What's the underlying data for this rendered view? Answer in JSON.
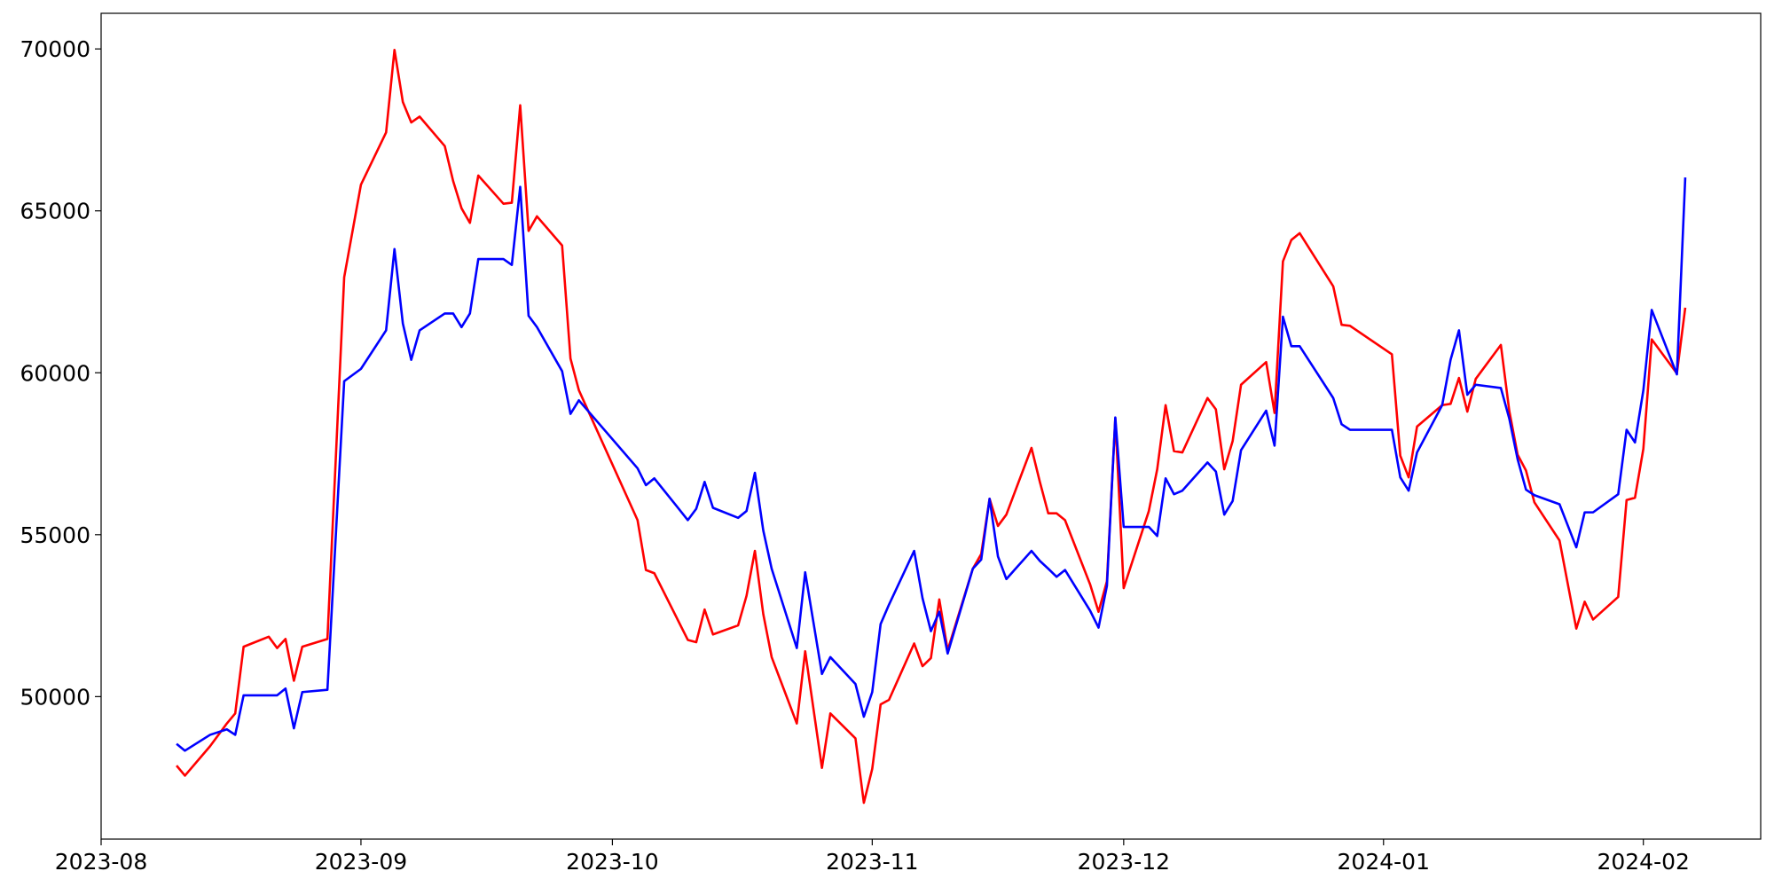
{
  "chart_data": {
    "type": "line",
    "x": [
      "2023-08-10",
      "2023-08-11",
      "2023-08-14",
      "2023-08-16",
      "2023-08-17",
      "2023-08-18",
      "2023-08-21",
      "2023-08-22",
      "2023-08-23",
      "2023-08-24",
      "2023-08-25",
      "2023-08-28",
      "2023-08-30",
      "2023-09-01",
      "2023-09-04",
      "2023-09-05",
      "2023-09-06",
      "2023-09-07",
      "2023-09-08",
      "2023-09-11",
      "2023-09-12",
      "2023-09-13",
      "2023-09-14",
      "2023-09-15",
      "2023-09-18",
      "2023-09-19",
      "2023-09-20",
      "2023-09-21",
      "2023-09-22",
      "2023-09-25",
      "2023-09-26",
      "2023-09-27",
      "2023-10-04",
      "2023-10-05",
      "2023-10-06",
      "2023-10-10",
      "2023-10-11",
      "2023-10-12",
      "2023-10-13",
      "2023-10-16",
      "2023-10-17",
      "2023-10-18",
      "2023-10-19",
      "2023-10-20",
      "2023-10-23",
      "2023-10-24",
      "2023-10-26",
      "2023-10-27",
      "2023-10-30",
      "2023-10-31",
      "2023-11-01",
      "2023-11-02",
      "2023-11-03",
      "2023-11-06",
      "2023-11-07",
      "2023-11-08",
      "2023-11-09",
      "2023-11-10",
      "2023-11-13",
      "2023-11-14",
      "2023-11-15",
      "2023-11-16",
      "2023-11-17",
      "2023-11-20",
      "2023-11-21",
      "2023-11-22",
      "2023-11-23",
      "2023-11-24",
      "2023-11-27",
      "2023-11-28",
      "2023-11-29",
      "2023-11-30",
      "2023-12-01",
      "2023-12-04",
      "2023-12-05",
      "2023-12-06",
      "2023-12-07",
      "2023-12-08",
      "2023-12-11",
      "2023-12-12",
      "2023-12-13",
      "2023-12-14",
      "2023-12-15",
      "2023-12-18",
      "2023-12-19",
      "2023-12-20",
      "2023-12-21",
      "2023-12-22",
      "2023-12-26",
      "2023-12-27",
      "2023-12-28",
      "2024-01-02",
      "2024-01-03",
      "2024-01-04",
      "2024-01-05",
      "2024-01-08",
      "2024-01-09",
      "2024-01-10",
      "2024-01-11",
      "2024-01-12",
      "2024-01-15",
      "2024-01-16",
      "2024-01-17",
      "2024-01-18",
      "2024-01-19",
      "2024-01-22",
      "2024-01-24",
      "2024-01-25",
      "2024-01-26",
      "2024-01-29",
      "2024-01-30",
      "2024-01-31",
      "2024-02-01",
      "2024-02-02",
      "2024-02-05",
      "2024-02-06"
    ],
    "series": [
      {
        "color": "#ff0000",
        "values": [
          47870,
          47560,
          48470,
          49170,
          49480,
          51540,
          51850,
          51500,
          51780,
          50490,
          51540,
          51780,
          62950,
          65810,
          67420,
          69970,
          68360,
          67730,
          67910,
          67000,
          65920,
          65080,
          64630,
          66090,
          65220,
          65250,
          68260,
          64380,
          64830,
          63930,
          60440,
          59460,
          55450,
          53910,
          53810,
          51750,
          51680,
          52690,
          51920,
          52200,
          53110,
          54500,
          52550,
          51220,
          49170,
          51400,
          47800,
          49480,
          48710,
          46720,
          47770,
          49760,
          49900,
          51640,
          50940,
          51190,
          53000,
          51430,
          53950,
          54400,
          56110,
          55270,
          55620,
          57680,
          56630,
          55660,
          55660,
          55450,
          53460,
          52620,
          53560,
          58590,
          53350,
          55730,
          57020,
          59000,
          57580,
          57540,
          59220,
          58870,
          57020,
          57890,
          59630,
          60330,
          58760,
          63440,
          64100,
          64310,
          62670,
          61480,
          61450,
          60570,
          57440,
          56770,
          58340,
          59000,
          59040,
          59840,
          58800,
          59810,
          60860,
          58830,
          57470,
          56980,
          56000,
          54820,
          52100,
          52930,
          52380,
          53080,
          56070,
          56140,
          57650,
          61030,
          59980,
          62010
        ]
      },
      {
        "color": "#0000ff",
        "values": [
          48540,
          48330,
          48820,
          48990,
          48820,
          50040,
          50040,
          50040,
          50250,
          49020,
          50140,
          50210,
          59740,
          60120,
          61310,
          63820,
          61520,
          60400,
          61310,
          61830,
          61830,
          61410,
          61830,
          63510,
          63510,
          63330,
          65740,
          61760,
          61410,
          60050,
          58730,
          59150,
          57050,
          56530,
          56740,
          55450,
          55800,
          56630,
          55830,
          55520,
          55730,
          56910,
          55130,
          53950,
          51500,
          53840,
          50700,
          51220,
          50390,
          49380,
          50140,
          52240,
          52840,
          54500,
          53040,
          52020,
          52620,
          51330,
          53950,
          54230,
          56110,
          54330,
          53630,
          54500,
          54190,
          53950,
          53700,
          53910,
          52650,
          52130,
          53420,
          58620,
          55240,
          55240,
          54960,
          56740,
          56250,
          56360,
          57230,
          56950,
          55620,
          56040,
          57610,
          58830,
          57750,
          61730,
          60820,
          60820,
          59220,
          58410,
          58240,
          58240,
          56770,
          56360,
          57540,
          59000,
          60400,
          61310,
          59320,
          59630,
          59530,
          58590,
          57330,
          56390,
          56220,
          55940,
          54610,
          55690,
          55690,
          56250,
          58240,
          57850,
          59460,
          61940,
          59950,
          66030
        ]
      }
    ],
    "xlim": [
      "2023-08-01",
      "2024-02-15"
    ],
    "xticks": [
      {
        "value": "2023-08-01",
        "label": "2023-08"
      },
      {
        "value": "2023-09-01",
        "label": "2023-09"
      },
      {
        "value": "2023-10-01",
        "label": "2023-10"
      },
      {
        "value": "2023-11-01",
        "label": "2023-11"
      },
      {
        "value": "2023-12-01",
        "label": "2023-12"
      },
      {
        "value": "2024-01-01",
        "label": "2024-01"
      },
      {
        "value": "2024-02-01",
        "label": "2024-02"
      }
    ],
    "ylim": [
      45600,
      71100
    ],
    "yticks": [
      50000,
      55000,
      60000,
      65000,
      70000
    ],
    "grid": false
  }
}
